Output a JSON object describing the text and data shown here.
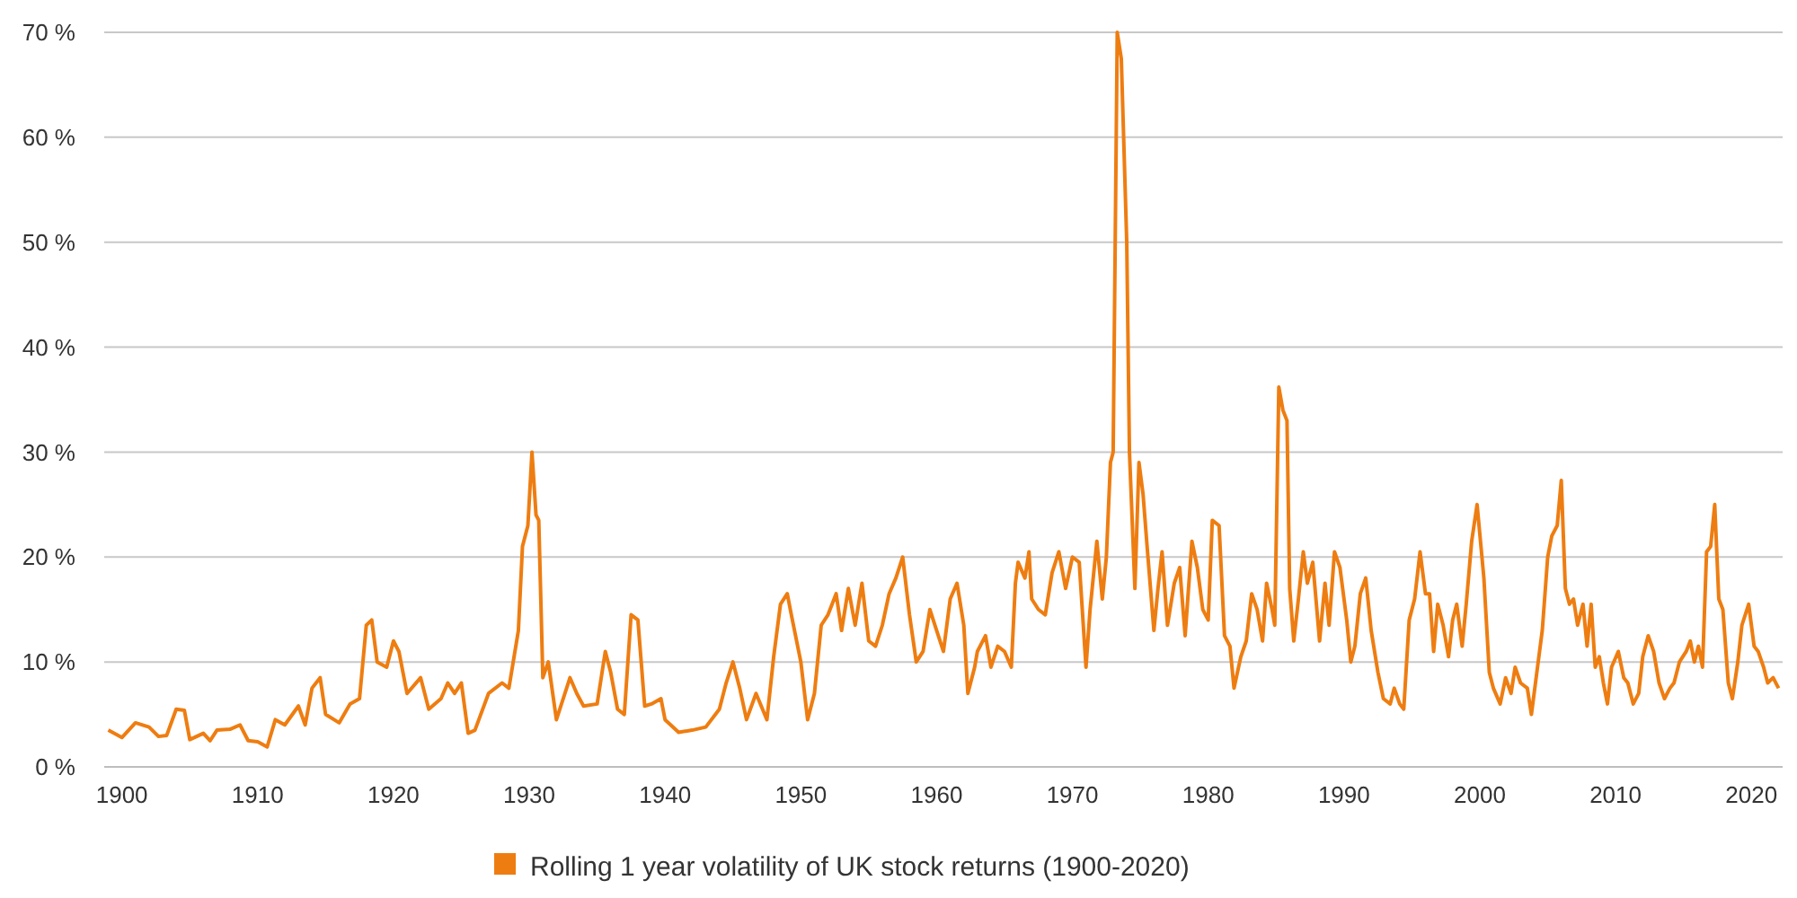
{
  "chart_data": {
    "type": "line",
    "xlim": [
      1898.7,
      2022.3
    ],
    "xticks": [
      1900,
      1910,
      1920,
      1930,
      1940,
      1950,
      1960,
      1970,
      1980,
      1990,
      2000,
      2010,
      2020
    ],
    "ylim": [
      0,
      70
    ],
    "yticks": [
      {
        "value": 0,
        "label": "0 %"
      },
      {
        "value": 10,
        "label": "10 %"
      },
      {
        "value": 20,
        "label": "20 %"
      },
      {
        "value": 30,
        "label": "30 %"
      },
      {
        "value": 40,
        "label": "40 %"
      },
      {
        "value": 50,
        "label": "50 %"
      },
      {
        "value": 60,
        "label": "60 %"
      },
      {
        "value": 70,
        "label": "70 %"
      }
    ],
    "grid": "y",
    "legend": "bottom",
    "marker": "none",
    "line_style": "solid",
    "x": [
      1899,
      1900,
      1901,
      1902,
      1902.7,
      1903.3,
      1904,
      1904.6,
      1905,
      1906,
      1906.5,
      1907,
      1908,
      1908.7,
      1909.3,
      1910,
      1910.7,
      1911.3,
      1912,
      1913,
      1913.5,
      1914,
      1914.6,
      1915,
      1916,
      1916.8,
      1917.5,
      1918,
      1918.4,
      1918.8,
      1919.5,
      1920,
      1920.4,
      1921,
      1922,
      1922.6,
      1923.5,
      1924,
      1924.5,
      1925,
      1925.5,
      1926,
      1927,
      1928,
      1928.5,
      1929.2,
      1929.5,
      1929.9,
      1930.2,
      1930.5,
      1930.7,
      1931,
      1931.4,
      1932,
      1933,
      1933.5,
      1934,
      1935,
      1935.6,
      1936,
      1936.5,
      1937,
      1937.5,
      1938,
      1938.5,
      1939,
      1939.7,
      1940,
      1941,
      1942,
      1943,
      1944,
      1944.5,
      1945,
      1945.5,
      1946,
      1946.7,
      1947.5,
      1948,
      1948.5,
      1949,
      1949.3,
      1950,
      1950.5,
      1951,
      1951.5,
      1952,
      1952.6,
      1953,
      1953.5,
      1954,
      1954.5,
      1955,
      1955.5,
      1956,
      1956.5,
      1957,
      1957.5,
      1958,
      1958.5,
      1959,
      1959.5,
      1960,
      1960.5,
      1961,
      1961.5,
      1962,
      1962.3,
      1962.8,
      1963,
      1963.6,
      1964,
      1964.5,
      1965,
      1965.5,
      1965.8,
      1966,
      1966.5,
      1966.8,
      1967,
      1967.5,
      1968,
      1968.5,
      1969,
      1969.5,
      1970,
      1970.5,
      1971,
      1971.3,
      1971.8,
      1972.2,
      1972.5,
      1972.8,
      1973,
      1973.3,
      1973.6,
      1974,
      1974.2,
      1974.4,
      1974.6,
      1974.9,
      1975.2,
      1975.5,
      1976,
      1976.3,
      1976.6,
      1977,
      1977.5,
      1977.9,
      1978.3,
      1978.8,
      1979.2,
      1979.6,
      1980,
      1980.3,
      1980.8,
      1981.2,
      1981.6,
      1981.9,
      1982.4,
      1982.8,
      1983.2,
      1983.6,
      1984,
      1984.3,
      1984.7,
      1984.9,
      1985.2,
      1985.5,
      1985.8,
      1986,
      1986.3,
      1986.6,
      1987,
      1987.3,
      1987.7,
      1988.2,
      1988.6,
      1988.9,
      1989.3,
      1989.7,
      1990.2,
      1990.5,
      1990.8,
      1991.2,
      1991.6,
      1992,
      1992.5,
      1992.9,
      1993.4,
      1993.7,
      1994.1,
      1994.4,
      1994.8,
      1995.2,
      1995.6,
      1996,
      1996.3,
      1996.6,
      1996.9,
      1997.3,
      1997.7,
      1998,
      1998.3,
      1998.7,
      1999,
      1999.4,
      1999.8,
      2000.3,
      2000.7,
      2001,
      2001.5,
      2001.9,
      2002.3,
      2002.6,
      2003,
      2003.5,
      2003.8,
      2004.2,
      2004.6,
      2005,
      2005.3,
      2005.7,
      2006,
      2006.3,
      2006.6,
      2006.9,
      2007.2,
      2007.6,
      2007.9,
      2008.2,
      2008.5,
      2008.8,
      2009.1,
      2009.4,
      2009.7,
      2010.2,
      2010.6,
      2010.9,
      2011.3,
      2011.7,
      2012,
      2012.4,
      2012.8,
      2013.2,
      2013.6,
      2014,
      2014.3,
      2014.7,
      2015.2,
      2015.5,
      2015.8,
      2016.1,
      2016.4,
      2016.7,
      2017,
      2017.3,
      2017.6,
      2017.9,
      2018.3,
      2018.6,
      2019,
      2019.3,
      2019.8,
      2020.2,
      2020.5,
      2020.9,
      2021.2,
      2021.6,
      2022
    ],
    "series": [
      {
        "name": "Rolling 1 year volatility of UK stock returns (1900-2020)",
        "color": "#ee7d11",
        "values": [
          3.5,
          2.8,
          4.2,
          3.8,
          2.9,
          3.0,
          5.5,
          5.4,
          2.6,
          3.2,
          2.5,
          3.5,
          3.6,
          4.0,
          2.5,
          2.4,
          1.9,
          4.5,
          4.0,
          5.8,
          4.0,
          7.5,
          8.5,
          5.0,
          4.2,
          6.0,
          6.5,
          13.5,
          14.0,
          10.0,
          9.5,
          12.0,
          11.0,
          7.0,
          8.5,
          5.5,
          6.5,
          8.0,
          7.0,
          8.0,
          3.2,
          3.5,
          7.0,
          8.0,
          7.5,
          13.0,
          21.0,
          23.0,
          30.0,
          24.0,
          23.5,
          8.5,
          10.0,
          4.5,
          8.5,
          7.0,
          5.8,
          6.0,
          11.0,
          9.0,
          5.5,
          5.0,
          14.5,
          14.0,
          5.8,
          6.0,
          6.5,
          4.5,
          3.3,
          3.5,
          3.8,
          5.5,
          8.0,
          10.0,
          7.5,
          4.5,
          7.0,
          4.5,
          10.5,
          15.5,
          16.5,
          14.5,
          10.0,
          4.5,
          7.0,
          13.5,
          14.5,
          16.5,
          13.0,
          17.0,
          13.5,
          17.5,
          12.0,
          11.5,
          13.5,
          16.5,
          18.0,
          20.0,
          14.5,
          10.0,
          11.0,
          15.0,
          13.0,
          11.0,
          16.0,
          17.5,
          13.5,
          7.0,
          9.5,
          11.0,
          12.5,
          9.5,
          11.5,
          11.0,
          9.5,
          17.5,
          19.5,
          18.0,
          20.5,
          16.0,
          15.0,
          14.5,
          18.5,
          20.5,
          17.0,
          20.0,
          19.5,
          9.5,
          15.0,
          21.5,
          16.0,
          20.0,
          29.0,
          30.0,
          70,
          67.5,
          50,
          30,
          23.5,
          17,
          29,
          26,
          21,
          13,
          17,
          20.5,
          13.5,
          17.5,
          19,
          12.5,
          21.5,
          19,
          15,
          14,
          23.5,
          23,
          12.5,
          11.5,
          7.5,
          10.5,
          12,
          16.5,
          15,
          12,
          17.5,
          15,
          13.5,
          36.2,
          34,
          33,
          17,
          12,
          15.5,
          20.5,
          17.5,
          19.5,
          12,
          17.5,
          13.5,
          20.5,
          19,
          14,
          10,
          11.5,
          16.5,
          18,
          13,
          9,
          6.5,
          6,
          7.5,
          6,
          5.5,
          14,
          16,
          20.5,
          16.5,
          16.5,
          11,
          15.5,
          13.5,
          10.5,
          14,
          15.5,
          11.5,
          15.5,
          21.5,
          25,
          18,
          9,
          7.5,
          6,
          8.5,
          7,
          9.5,
          8,
          7.5,
          5,
          9,
          13,
          20,
          22,
          23,
          27.3,
          17,
          15.5,
          16,
          13.5,
          15.5,
          11.5,
          15.5,
          9.5,
          10.5,
          8,
          6,
          9.5,
          11,
          8.5,
          8,
          6,
          7,
          10.5,
          12.5,
          11,
          8,
          6.5,
          7.5,
          8,
          10,
          11,
          12,
          10,
          11.5,
          9.5,
          20.5,
          21,
          25,
          16,
          15,
          8,
          6.5,
          10,
          13.5,
          15.5,
          11.5,
          11,
          9.5,
          8,
          8.5,
          7.5
        ]
      }
    ]
  }
}
